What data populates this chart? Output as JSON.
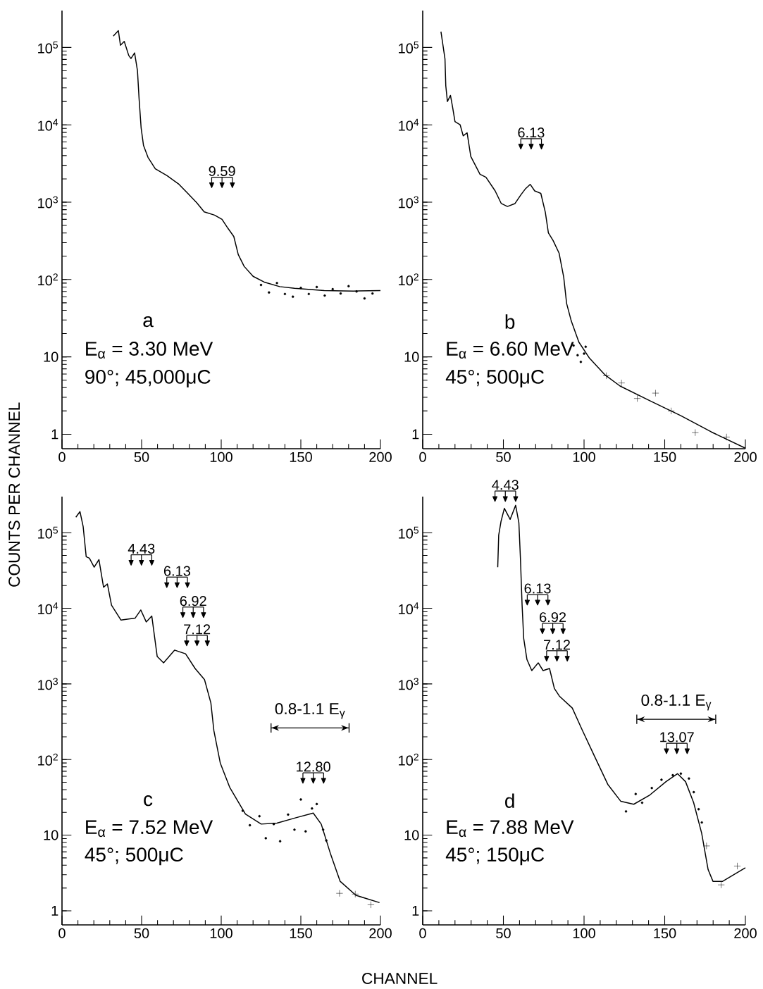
{
  "chart_data": [
    {
      "type": "line",
      "ylabel": "COUNTS PER CHANNEL",
      "log": "y",
      "xlim": [
        0,
        200
      ],
      "ylim": [
        0.65,
        300000
      ],
      "xticks": [
        0,
        50,
        100,
        150,
        200
      ],
      "yticks": [
        1,
        10,
        {
          "value": 100,
          "label": "10$^{2}$"
        },
        {
          "value": 1000,
          "label": "10$^{3}$"
        },
        {
          "value": 10000,
          "label": "10$^{4}$"
        },
        {
          "value": 100000,
          "label": "10$^{5}$"
        }
      ],
      "annotations": [
        "a",
        "E$_{α}$ = 3.30 MeV",
        "90°; 45,000μC",
        "9.59"
      ],
      "series": [
        {
          "color": "#000000",
          "line_style": "solid",
          "marker": "none",
          "x": [
            32.2,
            35.4,
            36.7,
            39.1,
            41.9,
            43.3,
            45.6,
            47.4,
            48.4,
            49.7,
            51.2,
            54,
            58.6,
            66,
            73.5,
            79,
            84.7,
            89.3,
            95.8,
            100.5,
            104.2,
            107.9,
            110.7,
            114.4,
            120,
            127.4,
            136.7,
            146,
            164.7,
            183,
            200
          ],
          "values": [
            140000,
            165000,
            107000,
            120000,
            79000,
            72000,
            85000,
            50000,
            22000,
            9100,
            5400,
            3800,
            2700,
            2200,
            1700,
            1300,
            980,
            750,
            680,
            600,
            460,
            360,
            210,
            148,
            110,
            92,
            81,
            77,
            72,
            71,
            72
          ]
        },
        {
          "type": "scatter",
          "color": "#000000",
          "marker": "circle",
          "x": [
            125,
            130,
            135,
            140,
            145,
            150,
            155,
            160,
            165,
            170,
            175,
            180,
            185,
            190,
            195
          ],
          "values": [
            85,
            68,
            90,
            65,
            60,
            78,
            65,
            80,
            62,
            75,
            66,
            82,
            70,
            57,
            66
          ]
        }
      ]
    },
    {
      "type": "line",
      "log": "y",
      "xlim": [
        0,
        200
      ],
      "ylim": [
        0.65,
        300000
      ],
      "xticks": [
        0,
        50,
        100,
        150,
        200
      ],
      "yticks": [
        1,
        10,
        {
          "value": 100,
          "label": "10$^{2}$"
        },
        {
          "value": 1000,
          "label": "10$^{3}$"
        },
        {
          "value": 10000,
          "label": "10$^{4}$"
        },
        {
          "value": 100000,
          "label": "10$^{5}$"
        }
      ],
      "annotations": [
        "b",
        "E$_{α}$ = 6.60 MeV",
        "45°; 500μC",
        "6.13"
      ],
      "series": [
        {
          "color": "#000000",
          "line_style": "solid",
          "marker": "none",
          "x": [
            11.3,
            13.8,
            14.3,
            15.3,
            17.2,
            18.5,
            20,
            23.2,
            25.1,
            27.5,
            29.8,
            35.5,
            39.2,
            44.9,
            48.7,
            52.5,
            57.2,
            60.9,
            63.8,
            66.6,
            69.4,
            73.2,
            76,
            77.9,
            80.8,
            84.5,
            87.4,
            89.2,
            92.1,
            96.8,
            103.4,
            112.8,
            122.3,
            141,
            160,
            178.9,
            200
          ],
          "values": [
            160000,
            71000,
            32000,
            20000,
            24000,
            17000,
            11000,
            10000,
            7200,
            7900,
            3900,
            2300,
            2100,
            1400,
            960,
            880,
            960,
            1250,
            1500,
            1700,
            1400,
            1300,
            740,
            400,
            320,
            220,
            107,
            49,
            29,
            15.5,
            9.6,
            5.9,
            4.2,
            2.7,
            1.74,
            1.07,
            0.66
          ]
        },
        {
          "type": "scatter",
          "color": "#000000",
          "marker": "cross",
          "x": [
            113.8,
            123.2,
            133,
            144.3,
            154,
            168.9,
            188.3
          ],
          "values": [
            5.7,
            4.6,
            2.9,
            3.4,
            2.0,
            1.05,
            0.92
          ]
        },
        {
          "type": "scatter",
          "color": "#000000",
          "marker": "circle",
          "x": [
            93.5,
            96,
            98,
            100,
            101
          ],
          "values": [
            14,
            10.5,
            8.6,
            11,
            13.5
          ]
        }
      ]
    },
    {
      "type": "line",
      "xlabel": "CHANNEL",
      "log": "y",
      "xlim": [
        0,
        200
      ],
      "ylim": [
        0.65,
        300000
      ],
      "xticks": [
        0,
        50,
        100,
        150,
        200
      ],
      "yticks": [
        1,
        10,
        {
          "value": 100,
          "label": "10$^{2}$"
        },
        {
          "value": 1000,
          "label": "10$^{3}$"
        },
        {
          "value": 10000,
          "label": "10$^{4}$"
        },
        {
          "value": 100000,
          "label": "10$^{5}$"
        }
      ],
      "annotations": [
        "c",
        "E$_{α}$ = 7.52 MeV",
        "45°; 500μC",
        "4.43",
        "6.13",
        "6.92",
        "7.12",
        "0.8-1.1 E$_{γ}$",
        "12.80"
      ],
      "series": [
        {
          "color": "#000000",
          "line_style": "solid",
          "marker": "none",
          "x": [
            8.7,
            11.3,
            13.3,
            15.2,
            17.2,
            20.2,
            23.2,
            26.1,
            28.5,
            31.1,
            37,
            45.9,
            49.5,
            52.9,
            56.4,
            59.8,
            63.8,
            70.7,
            77.6,
            83.6,
            89.5,
            93.5,
            95.4,
            99.4,
            105.3,
            115.2,
            125.1,
            135,
            146.9,
            157.8,
            162.8,
            168.7,
            174.7,
            184.6,
            199.4
          ],
          "values": [
            160000,
            190000,
            120000,
            48000,
            46000,
            35000,
            44000,
            19000,
            21000,
            11000,
            7000,
            7400,
            9500,
            6600,
            7900,
            2300,
            1900,
            2800,
            2500,
            1600,
            1140,
            560,
            240,
            90,
            43,
            19,
            14,
            14.4,
            17,
            19.6,
            14,
            5.6,
            2.45,
            1.6,
            1.28
          ]
        },
        {
          "type": "scatter",
          "color": "#000000",
          "marker": "cross",
          "x": [
            174.3,
            184.2,
            194
          ],
          "values": [
            1.7,
            1.66,
            1.2
          ]
        },
        {
          "type": "scatter",
          "color": "#000000",
          "marker": "circle",
          "x": [
            113.5,
            118,
            124,
            128,
            133,
            137,
            142,
            146,
            150,
            153,
            157,
            160,
            164,
            166
          ],
          "values": [
            21,
            13.5,
            17.8,
            9.1,
            14,
            8.3,
            18.7,
            11.8,
            29.6,
            11.2,
            22.5,
            25.8,
            11.8,
            8.5
          ]
        }
      ]
    },
    {
      "type": "line",
      "log": "y",
      "xlim": [
        0,
        200
      ],
      "ylim": [
        0.65,
        300000
      ],
      "xticks": [
        0,
        50,
        100,
        150,
        200
      ],
      "yticks": [
        1,
        10,
        {
          "value": 100,
          "label": "10$^{2}$"
        },
        {
          "value": 1000,
          "label": "10$^{3}$"
        },
        {
          "value": 10000,
          "label": "10$^{4}$"
        },
        {
          "value": 100000,
          "label": "10$^{5}$"
        }
      ],
      "annotations": [
        "d",
        "E$_{α}$ = 7.88 MeV",
        "45°; 150μC",
        "4.43",
        "6.13",
        "6.92",
        "7.12",
        "0.8-1.1 E$_{γ}$",
        "13.07"
      ],
      "series": [
        {
          "color": "#000000",
          "line_style": "solid",
          "marker": "none",
          "x": [
            46.5,
            47.1,
            48.5,
            50.6,
            54.2,
            57.6,
            59.6,
            60.6,
            61,
            61.6,
            62.6,
            64.6,
            67.6,
            71.6,
            74.6,
            78.6,
            81.6,
            84.7,
            92.7,
            98.7,
            106.7,
            114.7,
            122.8,
            130.8,
            140.8,
            150.8,
            157.9,
            162.9,
            167.9,
            172.9,
            176.9,
            179.9,
            185.9,
            200
          ],
          "values": [
            35000,
            93000,
            140000,
            210000,
            150000,
            230000,
            135000,
            44000,
            25000,
            11000,
            4000,
            2100,
            1500,
            1900,
            1500,
            1600,
            870,
            690,
            480,
            250,
            108,
            47,
            28,
            25.6,
            34,
            51,
            65,
            51,
            27,
            10.6,
            3.5,
            2.45,
            2.45,
            3.7
          ]
        },
        {
          "type": "scatter",
          "color": "#000000",
          "marker": "cross",
          "x": [
            175.9,
            185,
            195
          ],
          "values": [
            7.2,
            2.2,
            3.9
          ]
        },
        {
          "type": "scatter",
          "color": "#000000",
          "marker": "circle",
          "x": [
            126,
            132,
            136,
            142,
            148,
            155,
            160,
            165,
            168,
            171,
            173
          ],
          "values": [
            20.6,
            35,
            26.8,
            42,
            54,
            62,
            65,
            56,
            37,
            22,
            14.7
          ]
        }
      ]
    }
  ]
}
